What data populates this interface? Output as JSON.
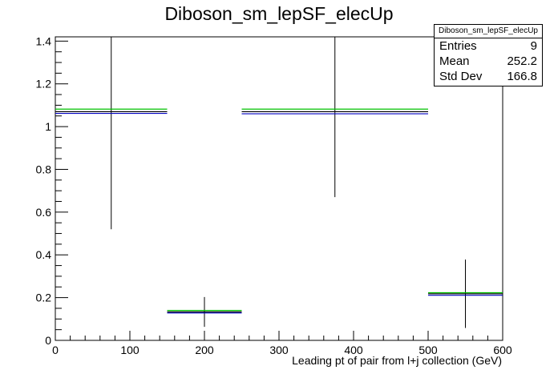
{
  "chart_data": {
    "type": "histogram",
    "title": "Diboson_sm_lepSF_elecUp",
    "xlabel": "Leading pt of pair from l+j collection (GeV)",
    "ylabel": "",
    "xlim": [
      0,
      600
    ],
    "ylim": [
      0,
      1.42
    ],
    "x_ticks": [
      "0",
      "100",
      "200",
      "300",
      "400",
      "500",
      "600"
    ],
    "y_ticks": [
      "0",
      "0.2",
      "0.4",
      "0.6",
      "0.8",
      "1",
      "1.2",
      "1.4"
    ],
    "bins": [
      {
        "low": 0,
        "high": 150,
        "center": 75
      },
      {
        "low": 150,
        "high": 250,
        "center": 200
      },
      {
        "low": 250,
        "high": 500,
        "center": 375
      },
      {
        "low": 500,
        "high": 600,
        "center": 550
      }
    ],
    "series": [
      {
        "color": "#000000",
        "values": [
          1.07,
          0.133,
          1.07,
          0.218
        ],
        "errors": [
          0.55,
          0.07,
          0.4,
          0.16
        ]
      },
      {
        "color": "#00c000",
        "values": [
          1.082,
          0.14,
          1.082,
          0.223
        ],
        "errors": [
          0,
          0,
          0,
          0
        ]
      },
      {
        "color": "#0000c0",
        "values": [
          1.062,
          0.128,
          1.06,
          0.211
        ],
        "errors": [
          0,
          0,
          0,
          0
        ]
      }
    ],
    "stats": {
      "name": "Diboson_sm_lepSF_elecUp",
      "entries_label": "Entries",
      "entries": "9",
      "mean_label": "Mean",
      "mean": "252.2",
      "stddev_label": "Std Dev",
      "stddev": "166.8"
    }
  }
}
